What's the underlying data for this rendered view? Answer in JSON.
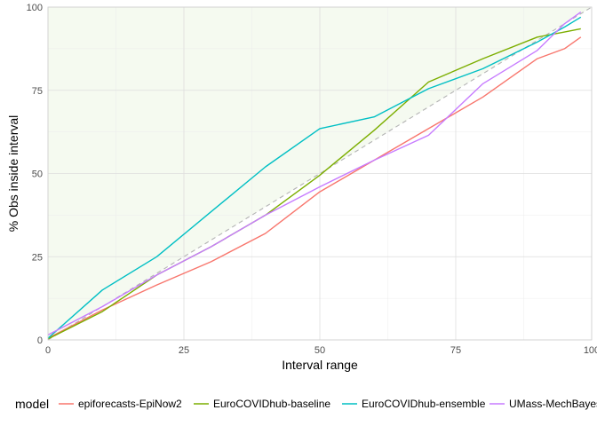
{
  "chart_data": {
    "type": "line",
    "xlabel": "Interval range",
    "ylabel": "% Obs inside interval",
    "xlim": [
      0,
      100
    ],
    "ylim": [
      0,
      100
    ],
    "x_ticks": [
      0,
      25,
      50,
      75,
      100
    ],
    "y_ticks": [
      0,
      25,
      50,
      75,
      100
    ],
    "grid": true,
    "legend_position": "bottom",
    "legend_title": "model",
    "shaded_region": {
      "description": "area above the diagonal",
      "color": "#f5faf0"
    },
    "reference_line": {
      "x": [
        0,
        100
      ],
      "y": [
        0,
        100
      ],
      "color": "#b3b3b3",
      "style": "dashed"
    },
    "series": [
      {
        "name": "epiforecasts-EpiNow2",
        "color": "#F8766D",
        "x": [
          0,
          10,
          20,
          30,
          40,
          50,
          60,
          70,
          80,
          90,
          95,
          98
        ],
        "y": [
          0.5,
          9,
          16.5,
          23.5,
          32,
          44.5,
          54,
          63.5,
          73,
          84.5,
          87.5,
          91
        ]
      },
      {
        "name": "EuroCOVIDhub-baseline",
        "color": "#7CAE00",
        "x": [
          0,
          10,
          20,
          30,
          40,
          50,
          60,
          70,
          80,
          90,
          95,
          98
        ],
        "y": [
          0.3,
          8.5,
          19.5,
          28,
          37.5,
          49.5,
          63,
          77.5,
          84.5,
          91,
          92.5,
          93.5
        ]
      },
      {
        "name": "EuroCOVIDhub-ensemble",
        "color": "#00BFC4",
        "x": [
          0,
          10,
          20,
          30,
          40,
          50,
          60,
          70,
          80,
          90,
          95,
          98
        ],
        "y": [
          0.5,
          15,
          25,
          38.5,
          52,
          63.5,
          67,
          75.5,
          81.5,
          89.5,
          94,
          97
        ]
      },
      {
        "name": "UMass-MechBayes",
        "color": "#C77CFF",
        "x": [
          0,
          10,
          20,
          30,
          40,
          50,
          60,
          70,
          80,
          90,
          95,
          98
        ],
        "y": [
          1.5,
          10,
          19.5,
          28,
          37.5,
          46,
          54,
          61.5,
          77,
          87,
          95,
          98.5
        ]
      }
    ]
  }
}
